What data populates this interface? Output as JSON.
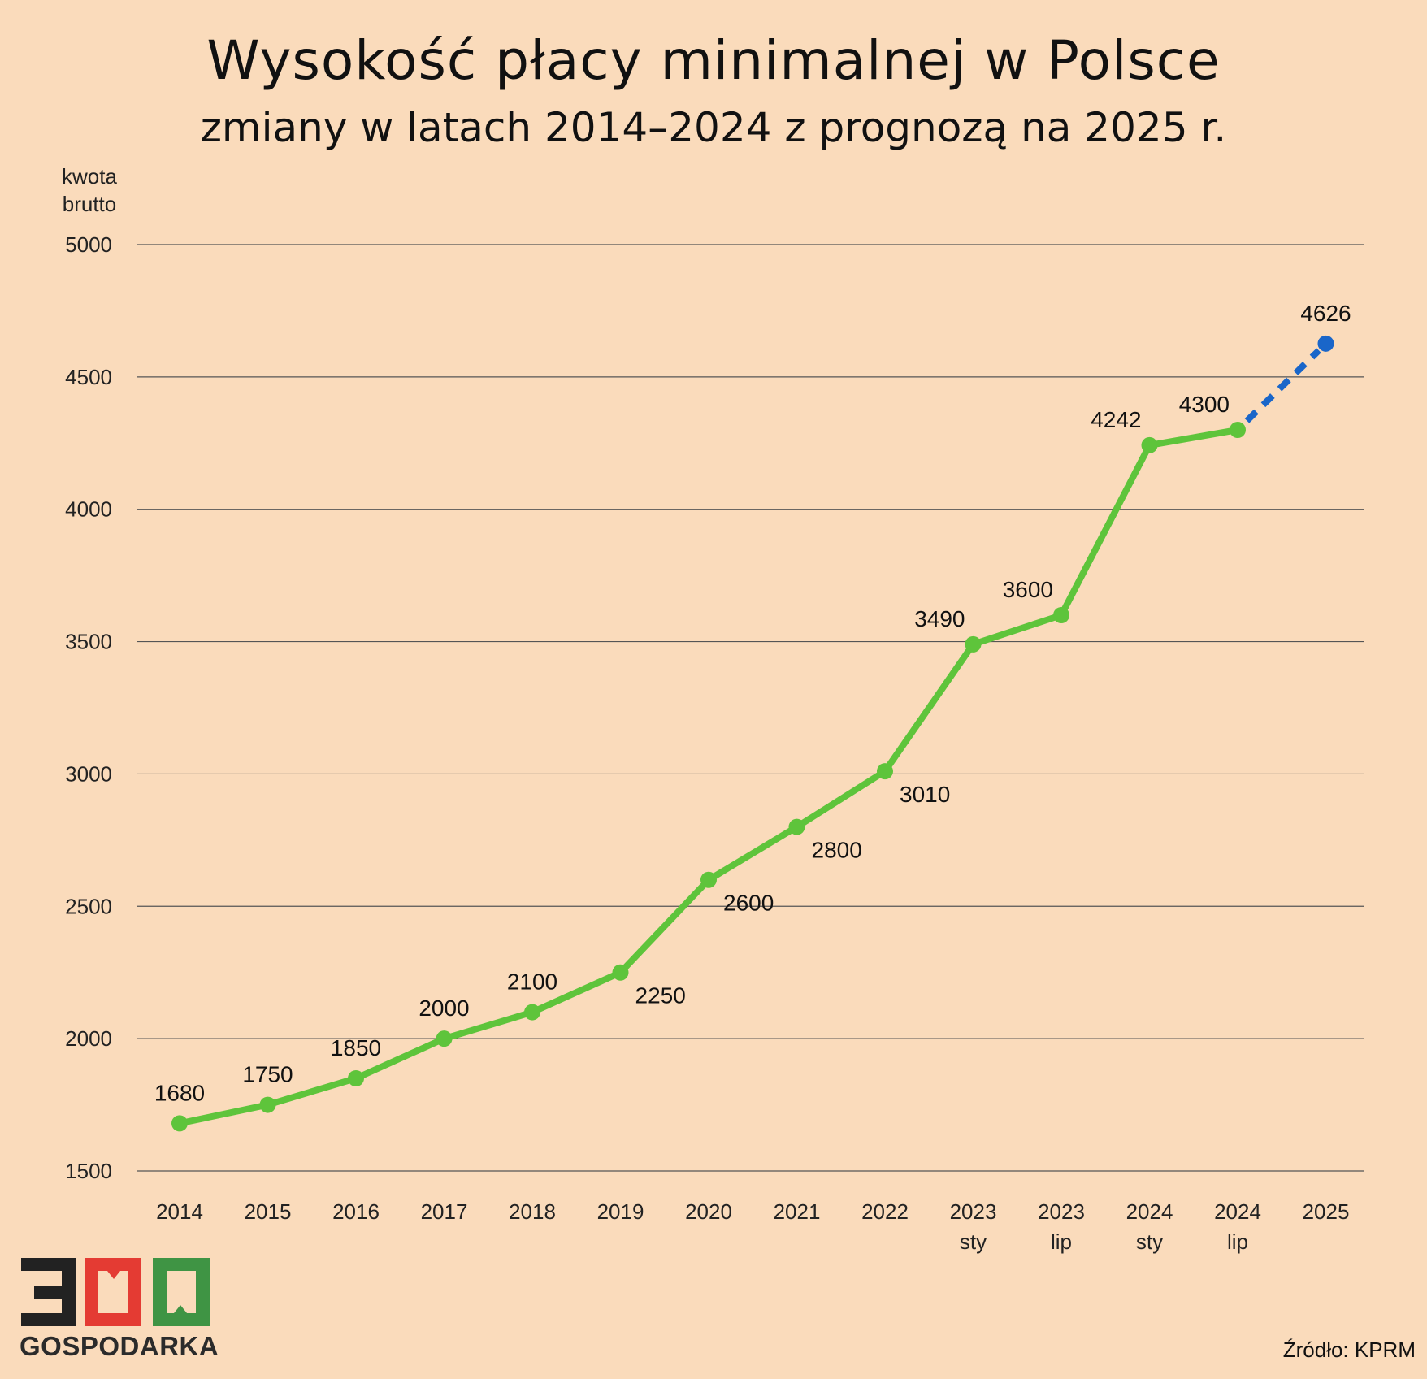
{
  "title": "Wysokość płacy minimalnej w Polsce",
  "subtitle": "zmiany w latach 2014–2024 z prognozą na 2025 r.",
  "source": "Źródło: KPRM",
  "logo": {
    "number": "300",
    "text": "GOSPODARKA"
  },
  "colors": {
    "background": "#fadbbb",
    "actual_line": "#5ec43b",
    "forecast": "#1a66c9",
    "logo_3": "#222222",
    "logo_0a": "#e43b33",
    "logo_0b": "#3f9444"
  },
  "chart_data": {
    "type": "line",
    "title": "Wysokość płacy minimalnej w Polsce",
    "subtitle": "zmiany w latach 2014–2024 z prognozą na 2025 r.",
    "ylabel": "kwota brutto",
    "xlabel": "",
    "ylim": [
      1500,
      5000
    ],
    "yticks": [
      1500,
      2000,
      2500,
      3000,
      3500,
      4000,
      4500,
      5000
    ],
    "grid": true,
    "categories": [
      [
        "2014"
      ],
      [
        "2015"
      ],
      [
        "2016"
      ],
      [
        "2017"
      ],
      [
        "2018"
      ],
      [
        "2019"
      ],
      [
        "2020"
      ],
      [
        "2021"
      ],
      [
        "2022"
      ],
      [
        "2023",
        "sty"
      ],
      [
        "2023",
        "lip"
      ],
      [
        "2024",
        "sty"
      ],
      [
        "2024",
        "lip"
      ],
      [
        "2025"
      ]
    ],
    "series": [
      {
        "values": [
          1680,
          1750,
          1850,
          2000,
          2100,
          2250,
          2600,
          2800,
          3010,
          3490,
          3600,
          4242,
          4300,
          null
        ],
        "style": "solid"
      },
      {
        "values": [
          null,
          null,
          null,
          null,
          null,
          null,
          null,
          null,
          null,
          null,
          null,
          null,
          4300,
          4626
        ],
        "style": "dashed"
      }
    ],
    "data_labels": [
      "1680",
      "1750",
      "1850",
      "2000",
      "2100",
      "2250",
      "2600",
      "2800",
      "3010",
      "3490",
      "3600",
      "4242",
      "4300",
      "4626"
    ],
    "data_label_side": [
      "above",
      "above",
      "above",
      "above",
      "above",
      "below-right",
      "below-right",
      "below-right",
      "below-right",
      "above-left",
      "above-left",
      "above-left",
      "above-left",
      "above"
    ]
  }
}
